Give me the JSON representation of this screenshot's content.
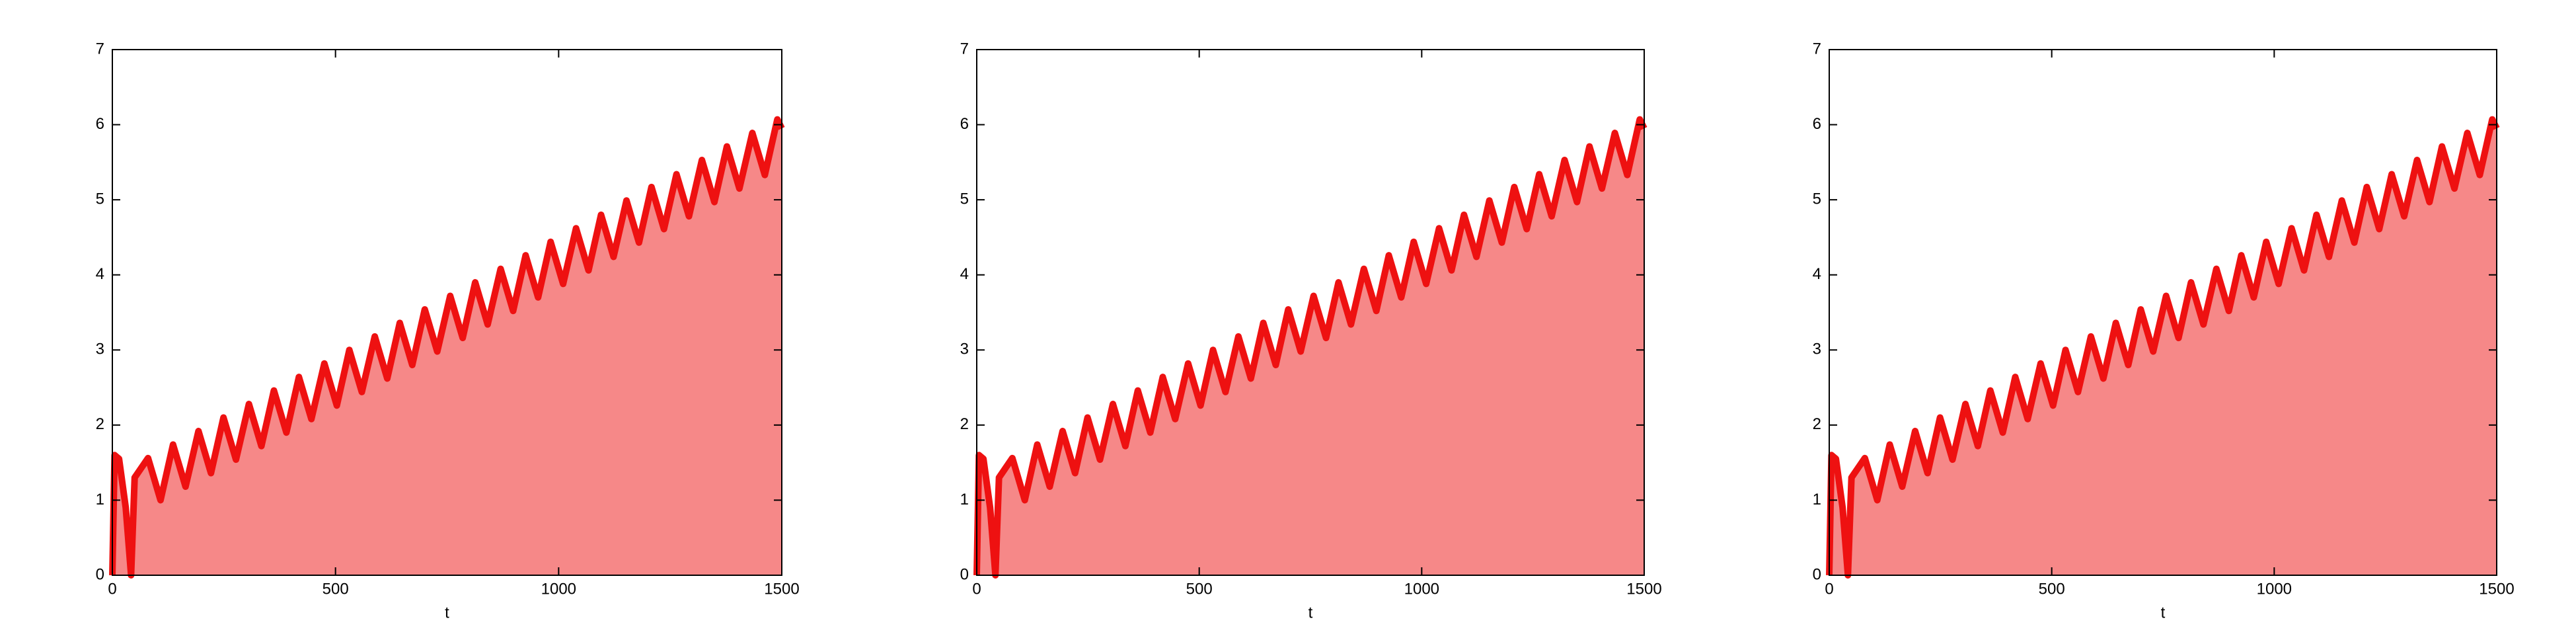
{
  "chart_data": [
    {
      "type": "area",
      "x_label": "t",
      "xlim": [
        0,
        1500
      ],
      "ylim": [
        0,
        7
      ],
      "xticks": [
        0,
        500,
        1000,
        1500
      ],
      "yticks": [
        0,
        1,
        2,
        3,
        4,
        5,
        6,
        7
      ],
      "x": [
        0,
        5,
        15,
        30,
        42,
        50,
        80,
        108,
        136,
        164,
        193,
        221,
        249,
        277,
        306,
        334,
        362,
        390,
        418,
        446,
        475,
        503,
        531,
        559,
        588,
        616,
        644,
        672,
        700,
        728,
        757,
        785,
        813,
        841,
        870,
        898,
        926,
        954,
        982,
        1010,
        1039,
        1067,
        1095,
        1123,
        1152,
        1180,
        1208,
        1236,
        1264,
        1292,
        1321,
        1349,
        1377,
        1405,
        1434,
        1462,
        1490,
        1500
      ],
      "series": [
        {
          "color": "#ee1111",
          "values": [
            0,
            1.6,
            1.55,
            0.9,
            0,
            1.3,
            1.56,
            1.0,
            1.74,
            1.18,
            1.92,
            1.36,
            2.1,
            1.54,
            2.28,
            1.72,
            2.46,
            1.9,
            2.64,
            2.08,
            2.82,
            2.26,
            3.0,
            2.44,
            3.18,
            2.62,
            3.36,
            2.8,
            3.54,
            2.98,
            3.72,
            3.16,
            3.9,
            3.34,
            4.08,
            3.52,
            4.26,
            3.7,
            4.44,
            3.88,
            4.62,
            4.06,
            4.8,
            4.24,
            4.99,
            4.43,
            5.17,
            4.61,
            5.34,
            4.78,
            5.53,
            4.97,
            5.71,
            5.15,
            5.89,
            5.33,
            6.07,
            5.95
          ]
        }
      ]
    },
    {
      "type": "area",
      "x_label": "t",
      "xlim": [
        0,
        1500
      ],
      "ylim": [
        0,
        7
      ],
      "xticks": [
        0,
        500,
        1000,
        1500
      ],
      "yticks": [
        0,
        1,
        2,
        3,
        4,
        5,
        6,
        7
      ],
      "x": [
        0,
        5,
        15,
        30,
        42,
        50,
        80,
        108,
        136,
        164,
        193,
        221,
        249,
        277,
        306,
        334,
        362,
        390,
        418,
        446,
        475,
        503,
        531,
        559,
        588,
        616,
        644,
        672,
        700,
        728,
        757,
        785,
        813,
        841,
        870,
        898,
        926,
        954,
        982,
        1010,
        1039,
        1067,
        1095,
        1123,
        1152,
        1180,
        1208,
        1236,
        1264,
        1292,
        1321,
        1349,
        1377,
        1405,
        1434,
        1462,
        1490,
        1500
      ],
      "series": [
        {
          "color": "#ee1111",
          "values": [
            0,
            1.6,
            1.55,
            0.9,
            0,
            1.3,
            1.56,
            1.0,
            1.74,
            1.18,
            1.92,
            1.36,
            2.1,
            1.54,
            2.28,
            1.72,
            2.46,
            1.9,
            2.64,
            2.08,
            2.82,
            2.26,
            3.0,
            2.44,
            3.18,
            2.62,
            3.36,
            2.8,
            3.54,
            2.98,
            3.72,
            3.16,
            3.9,
            3.34,
            4.08,
            3.52,
            4.26,
            3.7,
            4.44,
            3.88,
            4.62,
            4.06,
            4.8,
            4.24,
            4.99,
            4.43,
            5.17,
            4.61,
            5.34,
            4.78,
            5.53,
            4.97,
            5.71,
            5.15,
            5.89,
            5.33,
            6.07,
            5.95
          ]
        }
      ]
    },
    {
      "type": "area",
      "x_label": "t",
      "xlim": [
        0,
        1500
      ],
      "ylim": [
        0,
        7
      ],
      "xticks": [
        0,
        500,
        1000,
        1500
      ],
      "yticks": [
        0,
        1,
        2,
        3,
        4,
        5,
        6,
        7
      ],
      "x": [
        0,
        5,
        15,
        30,
        42,
        50,
        80,
        108,
        136,
        164,
        193,
        221,
        249,
        277,
        306,
        334,
        362,
        390,
        418,
        446,
        475,
        503,
        531,
        559,
        588,
        616,
        644,
        672,
        700,
        728,
        757,
        785,
        813,
        841,
        870,
        898,
        926,
        954,
        982,
        1010,
        1039,
        1067,
        1095,
        1123,
        1152,
        1180,
        1208,
        1236,
        1264,
        1292,
        1321,
        1349,
        1377,
        1405,
        1434,
        1462,
        1490,
        1500
      ],
      "series": [
        {
          "color": "#ee1111",
          "values": [
            0,
            1.6,
            1.55,
            0.9,
            0,
            1.3,
            1.56,
            1.0,
            1.74,
            1.18,
            1.92,
            1.36,
            2.1,
            1.54,
            2.28,
            1.72,
            2.46,
            1.9,
            2.64,
            2.08,
            2.82,
            2.26,
            3.0,
            2.44,
            3.18,
            2.62,
            3.36,
            2.8,
            3.54,
            2.98,
            3.72,
            3.16,
            3.9,
            3.34,
            4.08,
            3.52,
            4.26,
            3.7,
            4.44,
            3.88,
            4.62,
            4.06,
            4.8,
            4.24,
            4.99,
            4.43,
            5.17,
            4.61,
            5.34,
            4.78,
            5.53,
            4.97,
            5.71,
            5.15,
            5.89,
            5.33,
            6.07,
            5.95
          ]
        }
      ]
    }
  ]
}
